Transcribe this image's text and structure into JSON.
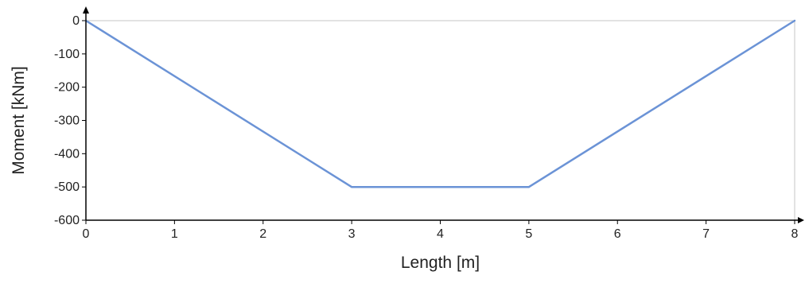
{
  "chart_data": {
    "type": "line",
    "title": "",
    "xlabel": "Length [m]",
    "ylabel": "Moment [kNm]",
    "xlim": [
      0,
      8
    ],
    "ylim": [
      -600,
      0
    ],
    "x_ticks": [
      0,
      1,
      2,
      3,
      4,
      5,
      6,
      7,
      8
    ],
    "y_ticks": [
      0,
      -100,
      -200,
      -300,
      -400,
      -500,
      -600
    ],
    "x_tick_labels": [
      "0",
      "1",
      "2",
      "3",
      "4",
      "5",
      "6",
      "7",
      "8"
    ],
    "y_tick_labels": [
      "0",
      "-100",
      "-200",
      "-300",
      "-400",
      "-500",
      "-600"
    ],
    "grid": false,
    "legend": "none",
    "series": [
      {
        "color": "#6b93d6",
        "x": [
          0,
          3,
          5,
          8
        ],
        "y": [
          0,
          -500,
          -500,
          0
        ]
      }
    ]
  }
}
